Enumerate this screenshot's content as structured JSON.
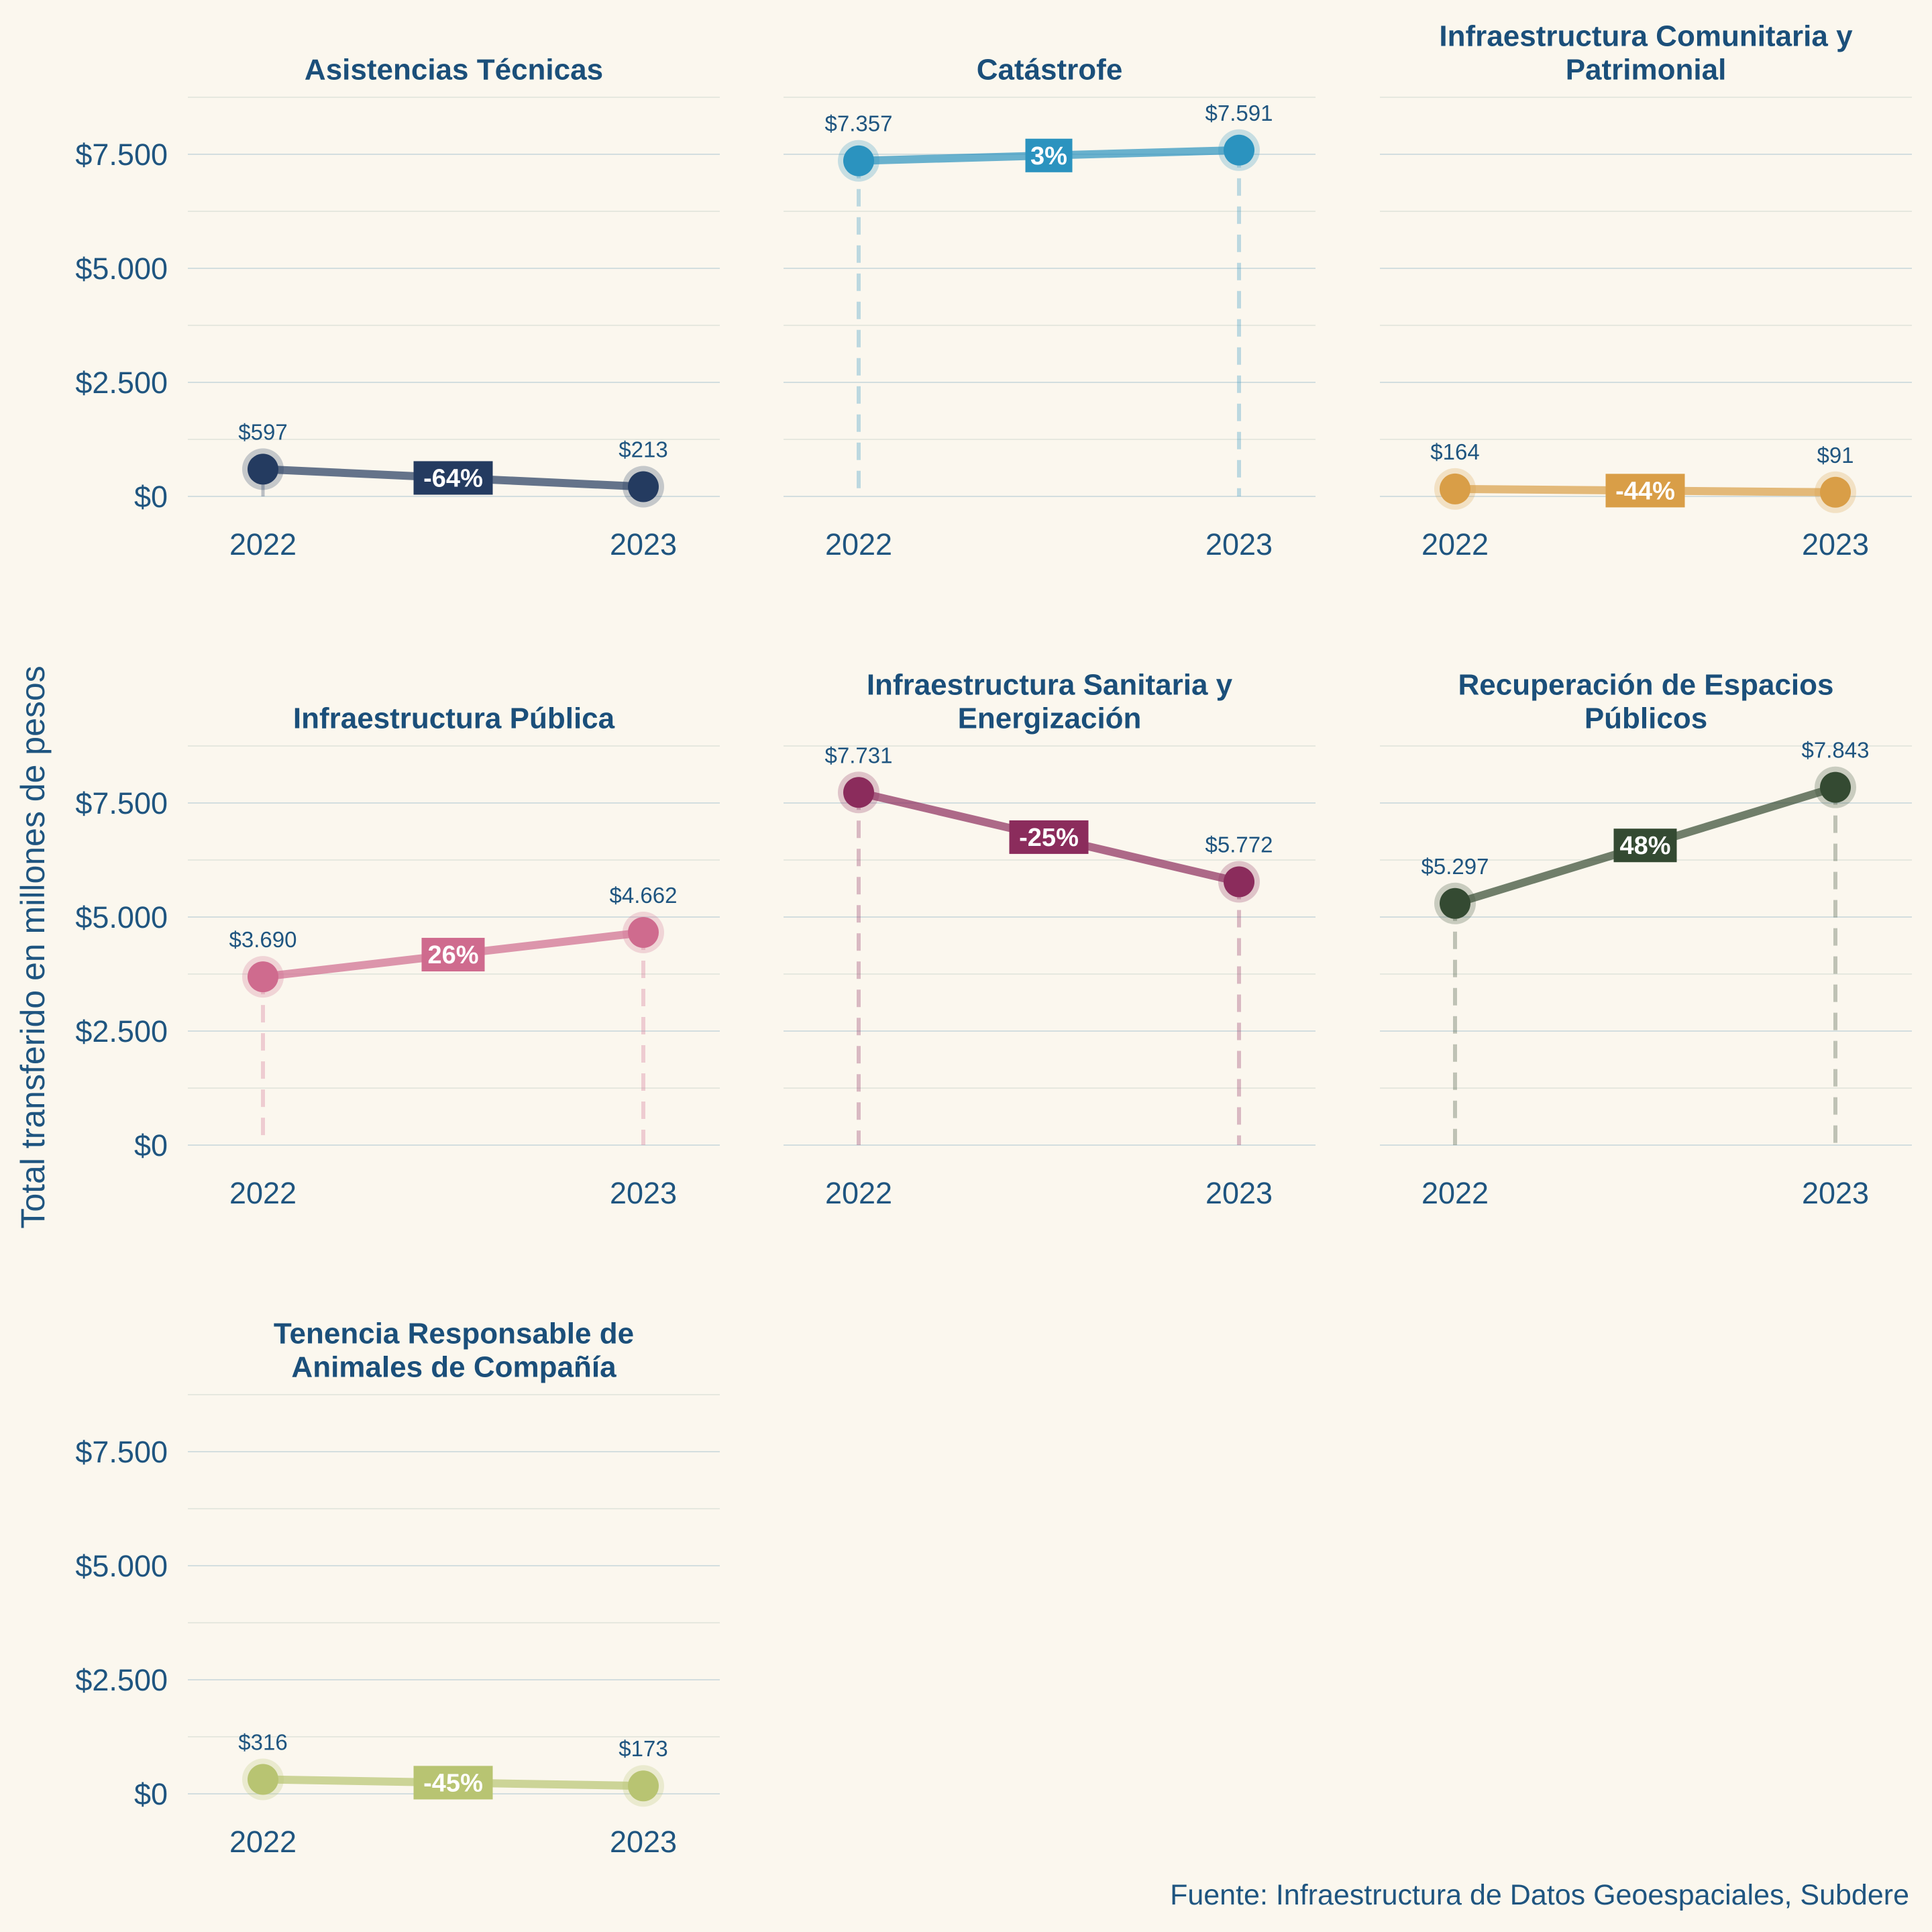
{
  "chart": {
    "ylabel": "Total transferido en millones de pesos",
    "source": "Fuente: Infraestructura de Datos Geoespaciales, Subdere"
  },
  "chart_data": {
    "type": "line",
    "facets": true,
    "x": [
      "2022",
      "2023"
    ],
    "ylim": [
      0,
      8800
    ],
    "y_ticks": [
      0,
      2500,
      5000,
      7500
    ],
    "y_tick_labels": [
      "$0",
      "$2.500",
      "$5.000",
      "$7.500"
    ],
    "ylabel": "Total transferido en millones de pesos",
    "grid": true,
    "panels": [
      {
        "title": [
          "Asistencias Técnicas"
        ],
        "values": [
          597,
          213
        ],
        "labels": [
          "$597",
          "$213"
        ],
        "change": "-64%",
        "color": "#243b60",
        "dashed": false
      },
      {
        "title": [
          "Catástrofe"
        ],
        "values": [
          7357,
          7591
        ],
        "labels": [
          "$7.357",
          "$7.591"
        ],
        "change": "3%",
        "color": "#2b93bf",
        "dashed": true
      },
      {
        "title": [
          "Infraestructura Comunitaria y",
          "Patrimonial"
        ],
        "values": [
          164,
          91
        ],
        "labels": [
          "$164",
          "$91"
        ],
        "change": "-44%",
        "color": "#d99e47",
        "dashed": false
      },
      {
        "title": [
          "Infraestructura Pública"
        ],
        "values": [
          3690,
          4662
        ],
        "labels": [
          "$3.690",
          "$4.662"
        ],
        "change": "26%",
        "color": "#cf6b8e",
        "dashed": true
      },
      {
        "title": [
          "Infraestructura Sanitaria y",
          "Energización"
        ],
        "values": [
          7731,
          5772
        ],
        "labels": [
          "$7.731",
          "$5.772"
        ],
        "change": "-25%",
        "color": "#8b2c5c",
        "dashed": true
      },
      {
        "title": [
          "Recuperación de Espacios",
          "Públicos"
        ],
        "values": [
          5297,
          7843
        ],
        "labels": [
          "$5.297",
          "$7.843"
        ],
        "change": "48%",
        "color": "#344a32",
        "dashed": true
      },
      {
        "title": [
          "Tenencia Responsable de",
          "Animales de Compañía"
        ],
        "values": [
          316,
          173
        ],
        "labels": [
          "$316",
          "$173"
        ],
        "change": "-45%",
        "color": "#b8c472",
        "dashed": false
      }
    ],
    "source": "Fuente: Infraestructura de Datos Geoespaciales, Subdere"
  }
}
